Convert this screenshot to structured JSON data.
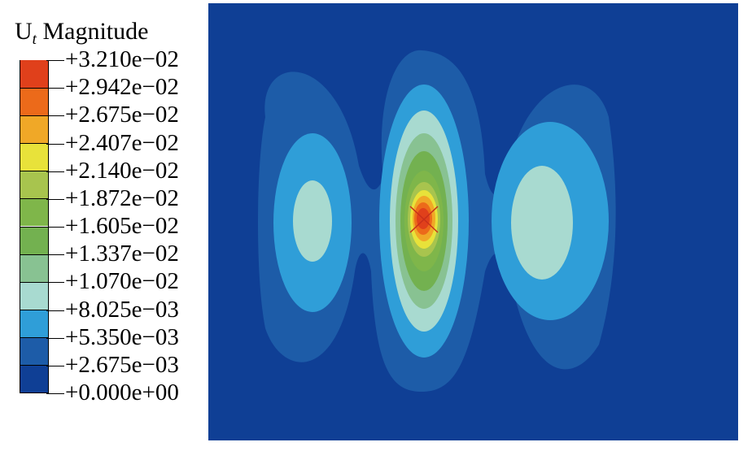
{
  "chart_data": {
    "type": "heatmap",
    "title": "Magnitude",
    "title_symbol": "U",
    "title_subscript": "t",
    "legend_placement": "left",
    "colorbar": {
      "labels": [
        "+3.210e−02",
        "+2.942e−02",
        "+2.675e−02",
        "+2.407e−02",
        "+2.140e−02",
        "+1.872e−02",
        "+1.605e−02",
        "+1.337e−02",
        "+1.070e−02",
        "+8.025e−03",
        "+5.350e−03",
        "+2.675e−03",
        "+0.000e+00"
      ],
      "values": [
        0.0321,
        0.02942,
        0.02675,
        0.02407,
        0.0214,
        0.01872,
        0.01605,
        0.01337,
        0.0107,
        0.008025,
        0.00535,
        0.002675,
        0.0
      ],
      "colors": [
        "#e0401b",
        "#ec6a1a",
        "#f0a827",
        "#e8e23a",
        "#a8c44e",
        "#7fb64a",
        "#73b150",
        "#88c292",
        "#a8dad0",
        "#2f9ed8",
        "#1d5ca8",
        "#0f3f95"
      ]
    },
    "field": {
      "background_level": 0.0,
      "background_color": "#0f3f95",
      "lobes": [
        {
          "name": "left",
          "peak_value": 0.0107,
          "outer_level": 0.002675
        },
        {
          "name": "center",
          "peak_value": 0.0321,
          "outer_level": 0.002675
        },
        {
          "name": "right",
          "peak_value": 0.0107,
          "outer_level": 0.002675
        }
      ]
    }
  }
}
